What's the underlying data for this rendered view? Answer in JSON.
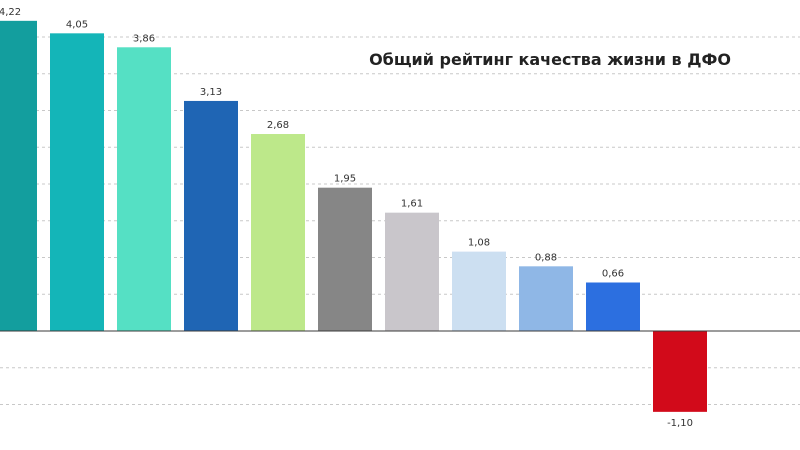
{
  "chart_data": {
    "type": "bar",
    "title": "Общий рейтинг качества жизни в ДФО",
    "xlabel": "",
    "ylabel": "",
    "ylim": [
      -1.6,
      4.4
    ],
    "grid": true,
    "legend": "none",
    "categories": [
      "",
      "",
      "",
      "",
      "",
      "",
      "",
      "",
      "",
      "",
      ""
    ],
    "values": [
      4.22,
      4.05,
      3.86,
      3.13,
      2.68,
      1.95,
      1.61,
      1.08,
      0.88,
      0.66,
      -1.1
    ],
    "labels": [
      "4,22",
      "4,05",
      "3,86",
      "3,13",
      "2,68",
      "1,95",
      "1,61",
      "1,08",
      "0,88",
      "0,66",
      "-1,10"
    ],
    "colors": [
      "#139e9e",
      "#14b5b8",
      "#55e0c4",
      "#1f65b4",
      "#bde88a",
      "#868686",
      "#c9c6cb",
      "#ccdff1",
      "#8fb7e6",
      "#2c6fe0",
      "#d20a1a"
    ]
  }
}
